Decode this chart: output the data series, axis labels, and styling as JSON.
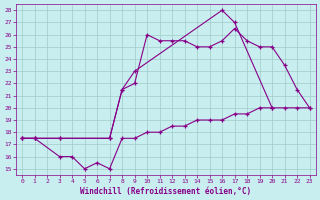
{
  "xlabel": "Windchill (Refroidissement éolien,°C)",
  "xlim": [
    -0.5,
    23.5
  ],
  "ylim": [
    14.5,
    28.5
  ],
  "xticks": [
    0,
    1,
    2,
    3,
    4,
    5,
    6,
    7,
    8,
    9,
    10,
    11,
    12,
    13,
    14,
    15,
    16,
    17,
    18,
    19,
    20,
    21,
    22,
    23
  ],
  "yticks": [
    15,
    16,
    17,
    18,
    19,
    20,
    21,
    22,
    23,
    24,
    25,
    26,
    27,
    28
  ],
  "bg_color": "#c8eef0",
  "line_color": "#880088",
  "grid_color": "#a0ccc8",
  "line1_x": [
    0,
    1,
    3,
    7,
    8,
    9,
    10,
    11,
    12,
    13,
    14,
    15,
    16,
    17,
    18,
    19,
    20,
    21,
    22,
    23
  ],
  "line1_y": [
    17.5,
    17.5,
    17.5,
    17.5,
    21.5,
    22.0,
    26.0,
    25.5,
    25.5,
    25.5,
    25.0,
    25.0,
    25.5,
    26.5,
    25.5,
    25.0,
    25.0,
    23.5,
    21.5,
    20.0
  ],
  "line2_x": [
    0,
    1,
    3,
    7,
    8,
    9,
    16,
    17,
    20
  ],
  "line2_y": [
    17.5,
    17.5,
    17.5,
    17.5,
    21.5,
    23.0,
    28.0,
    27.0,
    20.0
  ],
  "line3_x": [
    0,
    1,
    3,
    4,
    5,
    6,
    7,
    8,
    9,
    10,
    11,
    12,
    13,
    14,
    15,
    16,
    17,
    18,
    19,
    20,
    21,
    22,
    23
  ],
  "line3_y": [
    17.5,
    17.5,
    16.0,
    16.0,
    15.0,
    15.5,
    15.0,
    17.5,
    17.5,
    18.0,
    18.0,
    18.5,
    18.5,
    19.0,
    19.0,
    19.0,
    19.5,
    19.5,
    20.0,
    20.0,
    20.0,
    20.0,
    20.0
  ]
}
